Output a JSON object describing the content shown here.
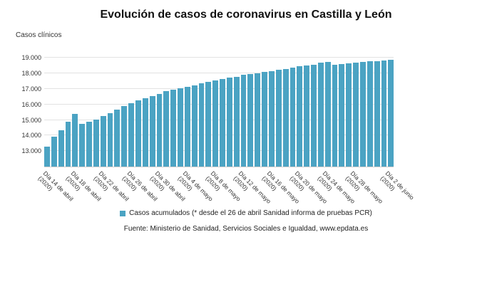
{
  "chart_data": {
    "type": "bar",
    "title": "Evolución de casos de coronavirus en Castilla y León",
    "ylabel": "Casos clínicos",
    "legend": "Casos acumulados (* desde el 26 de abril Sanidad informa de pruebas PCR)",
    "source": "Fuente: Ministerio de Sanidad, Servicios Sociales e Igualdad, www.epdata.es",
    "bar_color": "#4ba3c3",
    "grid": true,
    "legend_position": "bottom",
    "ymin": 12000,
    "ymax": 19800,
    "yticks": [
      {
        "value": 13000,
        "label": "13.000"
      },
      {
        "value": 14000,
        "label": "14.000"
      },
      {
        "value": 15000,
        "label": "15.000"
      },
      {
        "value": 16000,
        "label": "16.000"
      },
      {
        "value": 17000,
        "label": "17.000"
      },
      {
        "value": 18000,
        "label": "18.000"
      },
      {
        "value": 19000,
        "label": "19.000"
      }
    ],
    "x_unit": "días (14 de abril 2020 - 2 de junio 2020)",
    "values": [
      13300,
      13950,
      14350,
      14900,
      15400,
      14750,
      14900,
      15050,
      15250,
      15450,
      15650,
      15900,
      16100,
      16250,
      16400,
      16550,
      16700,
      16850,
      16950,
      17050,
      17150,
      17250,
      17350,
      17450,
      17550,
      17650,
      17750,
      17800,
      17900,
      17950,
      18000,
      18100,
      18150,
      18250,
      18300,
      18400,
      18450,
      18500,
      18550,
      18700,
      18750,
      18550,
      18600,
      18650,
      18700,
      18750,
      18800,
      18800,
      18850,
      18900
    ],
    "xtick_labels": [
      {
        "index": 0,
        "label": "Día 14 de abril",
        "sub": "(2020)"
      },
      {
        "index": 4,
        "label": "Día 18 de abril",
        "sub": "(2020)"
      },
      {
        "index": 8,
        "label": "Día 22 de abril",
        "sub": "(2020)"
      },
      {
        "index": 12,
        "label": "Día 26 de abril",
        "sub": "(2020)"
      },
      {
        "index": 16,
        "label": "Día 30 de abril",
        "sub": "(2020)"
      },
      {
        "index": 20,
        "label": "Día 4 de mayo",
        "sub": "(2020)"
      },
      {
        "index": 24,
        "label": "Día 8 de mayo",
        "sub": "(2020)"
      },
      {
        "index": 28,
        "label": "Día 12 de mayo",
        "sub": "(2020)"
      },
      {
        "index": 32,
        "label": "Día 16 de mayo",
        "sub": "(2020)"
      },
      {
        "index": 36,
        "label": "Día 20 de mayo",
        "sub": "(2020)"
      },
      {
        "index": 40,
        "label": "Día 24 de mayo",
        "sub": "(2020)"
      },
      {
        "index": 44,
        "label": "Día 28 de mayo",
        "sub": "(2020)"
      },
      {
        "index": 49,
        "label": "Día 2 de junio",
        "sub": "(2020)"
      }
    ]
  }
}
